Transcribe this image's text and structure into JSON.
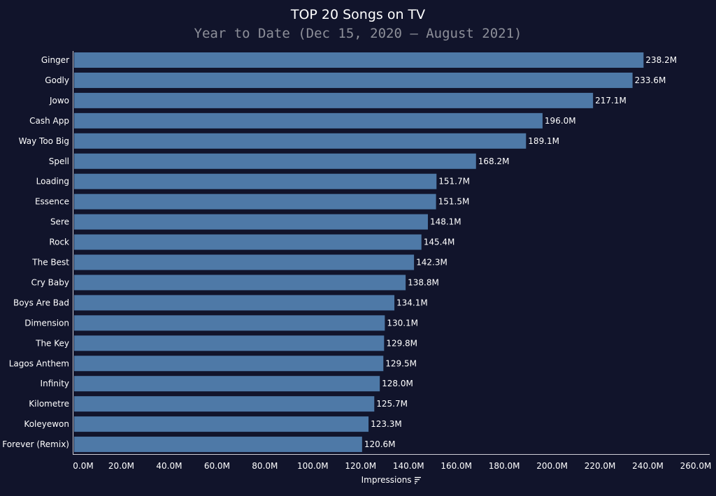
{
  "chart_data": {
    "type": "bar",
    "orientation": "horizontal",
    "title": "TOP 20 Songs on TV",
    "subtitle": "Year to Date (Dec 15, 2020 — August 2021)",
    "xlabel": "Impressions",
    "xlabel_icon": "sort-descending-icon",
    "categories": [
      "Ginger",
      "Godly",
      "Jowo",
      "Cash App",
      "Way Too Big",
      "Spell",
      "Loading",
      "Essence",
      "Sere",
      "Rock",
      "The Best",
      "Cry Baby",
      "Boys Are Bad",
      "Dimension",
      "The Key",
      "Lagos Anthem",
      "Infinity",
      "Kilometre",
      "Koleyewon",
      "Forever (Remix)"
    ],
    "values": [
      238.2,
      233.6,
      217.1,
      196.0,
      189.1,
      168.2,
      151.7,
      151.5,
      148.1,
      145.4,
      142.3,
      138.8,
      134.1,
      130.1,
      129.8,
      129.5,
      128.0,
      125.7,
      123.3,
      120.6
    ],
    "value_labels": [
      "238.2M",
      "233.6M",
      "217.1M",
      "196.0M",
      "189.1M",
      "168.2M",
      "151.7M",
      "151.5M",
      "148.1M",
      "145.4M",
      "142.3M",
      "138.8M",
      "134.1M",
      "130.1M",
      "129.8M",
      "129.5M",
      "128.0M",
      "125.7M",
      "123.3M",
      "120.6M"
    ],
    "xlim": [
      0,
      260
    ],
    "xticks": [
      0,
      20,
      40,
      60,
      80,
      100,
      120,
      140,
      160,
      180,
      200,
      220,
      240,
      260
    ],
    "xtick_labels": [
      "0.0M",
      "20.0M",
      "40.0M",
      "60.0M",
      "80.0M",
      "100.0M",
      "120.0M",
      "140.0M",
      "160.0M",
      "180.0M",
      "200.0M",
      "220.0M",
      "240.0M",
      "260.0M"
    ],
    "grid": false,
    "colors": {
      "bar": "#4e79a7",
      "background": "#11142b",
      "subtitle": "#8d8f99"
    }
  }
}
